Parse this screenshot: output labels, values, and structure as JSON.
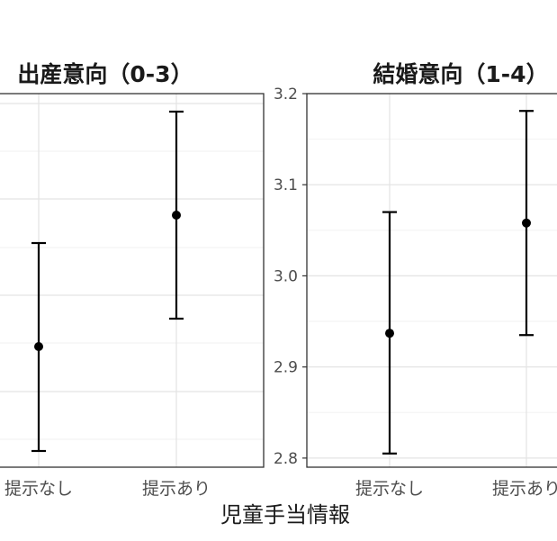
{
  "chart_data": [
    {
      "type": "scatter",
      "title": "出産意向（0-3）",
      "categories": [
        "提示なし",
        "提示あり"
      ],
      "series": [
        {
          "values": [
            null,
            null
          ],
          "ci": [
            [
              null,
              null
            ],
            [
              null,
              null
            ]
          ]
        }
      ],
      "grid": true,
      "legend": "none"
    },
    {
      "type": "scatter",
      "title": "結婚意向（1-4）",
      "categories": [
        "提示なし",
        "提示あり"
      ],
      "y_ticks": [
        "2.8",
        "2.9",
        "3.0",
        "3.1",
        "3.2"
      ],
      "ylim": [
        2.79,
        3.2
      ],
      "series": [
        {
          "values": [
            2.937,
            3.058
          ],
          "ci": [
            [
              2.805,
              3.07
            ],
            [
              2.935,
              3.181
            ]
          ]
        }
      ],
      "grid": true,
      "legend": "none"
    }
  ],
  "xlabel": "児童手当情報"
}
